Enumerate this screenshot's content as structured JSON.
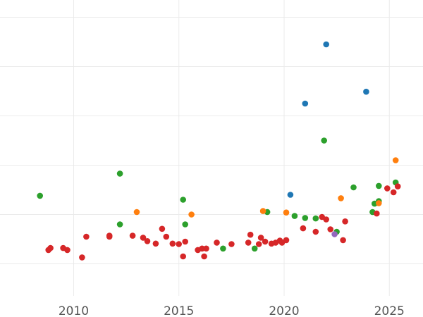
{
  "chart_data": {
    "type": "scatter",
    "title": "",
    "xlabel": "",
    "ylabel": "",
    "xlim": [
      2006.5,
      2026.6
    ],
    "ylim": [
      0,
      6
    ],
    "x_ticks": [
      {
        "value": 2010,
        "label": "2010"
      },
      {
        "value": 2015,
        "label": "2015"
      },
      {
        "value": 2020,
        "label": "2020"
      },
      {
        "value": 2025,
        "label": "2025"
      }
    ],
    "y_gridlines": [
      0.65,
      1.65,
      2.65,
      3.65,
      4.65,
      5.65
    ],
    "x_gridlines": [
      2010,
      2015,
      2020,
      2025
    ],
    "grid": true,
    "legend": "none",
    "colors": {
      "blue": "#1f77b4",
      "green": "#2ca02c",
      "orange": "#ff7f0e",
      "red": "#d62728",
      "purple": "#9467bd"
    },
    "series": [
      {
        "color_key": "blue",
        "points": [
          [
            2022.0,
            5.1
          ],
          [
            2021.0,
            3.9
          ],
          [
            2023.9,
            4.14
          ],
          [
            2020.3,
            2.05
          ]
        ]
      },
      {
        "color_key": "green",
        "points": [
          [
            2008.4,
            2.03
          ],
          [
            2012.2,
            2.48
          ],
          [
            2012.2,
            1.45
          ],
          [
            2015.2,
            1.95
          ],
          [
            2015.3,
            1.45
          ],
          [
            2017.1,
            0.96
          ],
          [
            2018.6,
            0.96
          ],
          [
            2019.2,
            1.7
          ],
          [
            2020.5,
            1.62
          ],
          [
            2021.0,
            1.58
          ],
          [
            2021.5,
            1.57
          ],
          [
            2021.9,
            3.15
          ],
          [
            2022.5,
            1.3
          ],
          [
            2023.3,
            2.2
          ],
          [
            2024.2,
            1.7
          ],
          [
            2024.3,
            1.87
          ],
          [
            2024.5,
            1.92
          ],
          [
            2024.5,
            2.23
          ],
          [
            2025.3,
            2.3
          ]
        ]
      },
      {
        "color_key": "orange",
        "points": [
          [
            2013.0,
            1.7
          ],
          [
            2015.6,
            1.65
          ],
          [
            2019.0,
            1.72
          ],
          [
            2020.1,
            1.69
          ],
          [
            2022.7,
            1.98
          ],
          [
            2024.5,
            1.88
          ],
          [
            2025.3,
            2.75
          ]
        ]
      },
      {
        "color_key": "red",
        "points": [
          [
            2008.8,
            0.93
          ],
          [
            2008.9,
            0.97
          ],
          [
            2009.5,
            0.97
          ],
          [
            2009.7,
            0.93
          ],
          [
            2010.4,
            0.78
          ],
          [
            2010.6,
            1.2
          ],
          [
            2011.7,
            1.2
          ],
          [
            2011.7,
            1.22
          ],
          [
            2012.8,
            1.22
          ],
          [
            2013.3,
            1.18
          ],
          [
            2013.5,
            1.11
          ],
          [
            2013.9,
            1.06
          ],
          [
            2014.2,
            1.36
          ],
          [
            2014.4,
            1.2
          ],
          [
            2014.7,
            1.06
          ],
          [
            2015.0,
            1.05
          ],
          [
            2015.2,
            0.8
          ],
          [
            2015.3,
            1.1
          ],
          [
            2015.9,
            0.93
          ],
          [
            2016.1,
            0.96
          ],
          [
            2016.2,
            0.8
          ],
          [
            2016.3,
            0.96
          ],
          [
            2016.8,
            1.08
          ],
          [
            2017.5,
            1.05
          ],
          [
            2018.3,
            1.08
          ],
          [
            2018.4,
            1.24
          ],
          [
            2018.8,
            1.05
          ],
          [
            2018.9,
            1.18
          ],
          [
            2019.1,
            1.1
          ],
          [
            2019.4,
            1.06
          ],
          [
            2019.6,
            1.08
          ],
          [
            2019.8,
            1.12
          ],
          [
            2019.9,
            1.08
          ],
          [
            2020.1,
            1.13
          ],
          [
            2020.9,
            1.37
          ],
          [
            2021.5,
            1.3
          ],
          [
            2021.8,
            1.6
          ],
          [
            2022.0,
            1.55
          ],
          [
            2022.2,
            1.35
          ],
          [
            2022.8,
            1.13
          ],
          [
            2022.9,
            1.51
          ],
          [
            2024.4,
            1.67
          ],
          [
            2024.9,
            2.18
          ],
          [
            2025.2,
            2.1
          ],
          [
            2025.4,
            2.22
          ]
        ]
      },
      {
        "color_key": "purple",
        "points": [
          [
            2022.4,
            1.25
          ]
        ]
      }
    ]
  }
}
